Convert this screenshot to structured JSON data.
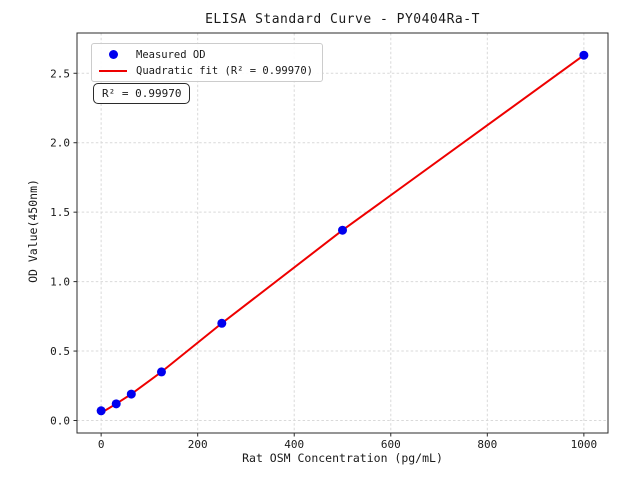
{
  "figure": {
    "background": "#ffffff",
    "frame_color": "#2b2b2b",
    "grid_color": "#d9d9d9",
    "text_color": "#1a1a1a"
  },
  "chart_data": {
    "type": "scatter",
    "title": "ELISA Standard Curve - PY0404Ra-T",
    "xlabel": "Rat OSM Concentration (pg/mL)",
    "ylabel": "OD Value(450nm)",
    "xlim": [
      -50,
      1050
    ],
    "ylim": [
      -0.09,
      2.79
    ],
    "xticks": [
      0,
      200,
      400,
      600,
      800,
      1000
    ],
    "xtick_labels": [
      "0",
      "200",
      "400",
      "600",
      "800",
      "1000"
    ],
    "yticks": [
      0.0,
      0.5,
      1.0,
      1.5,
      2.0,
      2.5
    ],
    "ytick_labels": [
      "0.0",
      "0.5",
      "1.0",
      "1.5",
      "2.0",
      "2.5"
    ],
    "grid": true,
    "grid_style": "dashed",
    "legend_position": "upper left",
    "series": [
      {
        "name": "Measured OD",
        "type": "scatter",
        "color": "#0000ee",
        "marker": "circle",
        "x": [
          0,
          31.25,
          62.5,
          125,
          250,
          500,
          1000
        ],
        "y": [
          0.07,
          0.12,
          0.19,
          0.35,
          0.7,
          1.37,
          2.63
        ]
      },
      {
        "name": "Quadratic fit (R² = 0.99970)",
        "type": "line",
        "color": "#ee0000",
        "x": [
          0,
          31.25,
          62.5,
          125,
          250,
          500,
          1000
        ],
        "y": [
          0.055,
          0.12,
          0.19,
          0.35,
          0.7,
          1.37,
          2.63
        ]
      }
    ],
    "annotation": {
      "text": "R² = 0.99970"
    },
    "r_squared": "0.99970"
  }
}
